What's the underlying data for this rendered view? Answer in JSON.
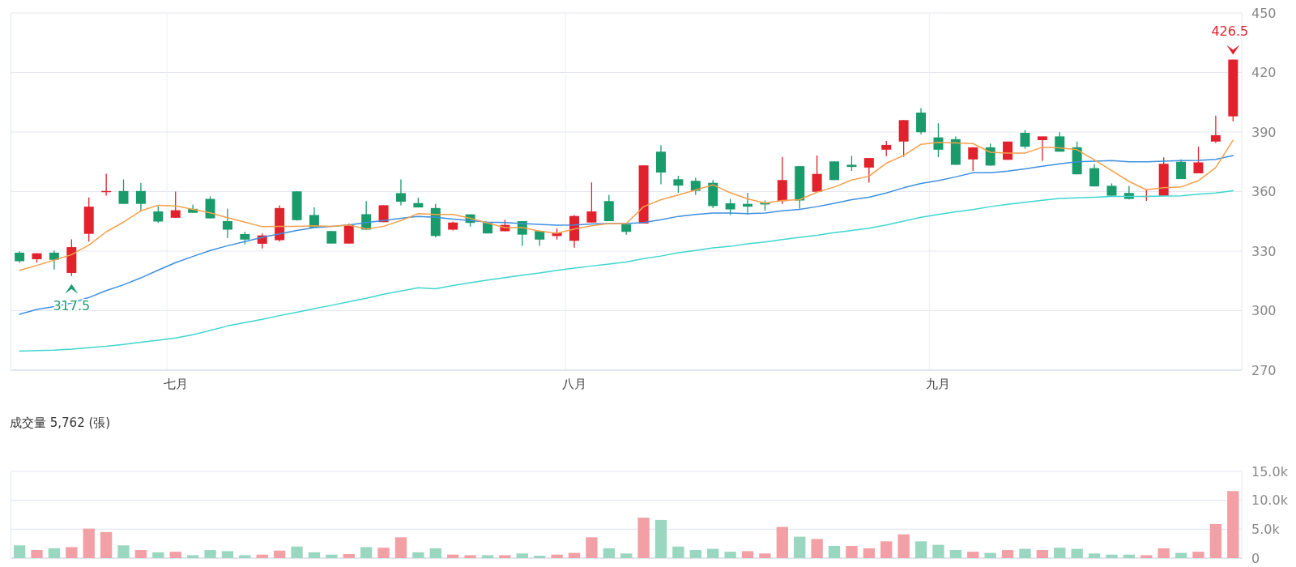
{
  "chart_data": [
    {
      "type": "candlestick",
      "categories": [
        null,
        null,
        null,
        null,
        null,
        null,
        null,
        null,
        null,
        "七月",
        null,
        null,
        null,
        null,
        null,
        null,
        null,
        null,
        null,
        null,
        null,
        null,
        null,
        null,
        null,
        null,
        null,
        null,
        null,
        null,
        null,
        null,
        "八月",
        null,
        null,
        null,
        null,
        null,
        null,
        null,
        null,
        null,
        null,
        null,
        null,
        null,
        null,
        null,
        null,
        null,
        null,
        null,
        null,
        "九月",
        null,
        null,
        null,
        null,
        null,
        null,
        null,
        null,
        null,
        null,
        null,
        null,
        null,
        null,
        null,
        null,
        null
      ],
      "ohlc": [
        [
          329.2,
          329.9,
          324.2,
          324.9
        ],
        [
          325.9,
          328.9,
          324.2,
          328.9
        ],
        [
          329.2,
          330.3,
          320.7,
          325.6
        ],
        [
          319.0,
          335.9,
          317.5,
          332.0
        ],
        [
          338.7,
          357.0,
          334.8,
          352.4
        ],
        [
          359.7,
          369.0,
          358.0,
          360.3
        ],
        [
          360.3,
          366.1,
          353.8,
          353.8
        ],
        [
          360.3,
          364.4,
          350.3,
          353.8
        ],
        [
          350.0,
          352.8,
          344.2,
          344.9
        ],
        [
          346.8,
          360.0,
          346.8,
          350.6
        ],
        [
          351.3,
          353.4,
          349.3,
          349.3
        ],
        [
          356.3,
          357.6,
          346.5,
          346.5
        ],
        [
          345.1,
          351.4,
          336.6,
          340.8
        ],
        [
          338.6,
          339.7,
          333.4,
          335.8
        ],
        [
          333.7,
          338.9,
          331.3,
          337.9
        ],
        [
          335.5,
          353.1,
          334.8,
          351.7
        ],
        [
          360.1,
          360.1,
          345.4,
          345.6
        ],
        [
          348.2,
          352.0,
          341.8,
          341.8
        ],
        [
          340.1,
          340.1,
          333.8,
          333.8
        ],
        [
          333.8,
          343.9,
          333.8,
          343.2
        ],
        [
          348.6,
          355.2,
          340.8,
          340.8
        ],
        [
          344.6,
          353.1,
          344.6,
          353.1
        ],
        [
          359.2,
          366.1,
          353.1,
          354.9
        ],
        [
          354.2,
          356.9,
          352.0,
          352.0
        ],
        [
          351.7,
          353.8,
          336.9,
          337.6
        ],
        [
          340.8,
          344.9,
          340.4,
          344.4
        ],
        [
          348.5,
          348.5,
          342.3,
          344.2
        ],
        [
          344.2,
          344.2,
          338.9,
          338.9
        ],
        [
          340.0,
          345.8,
          340.0,
          343.2
        ],
        [
          345.1,
          345.1,
          332.7,
          338.3
        ],
        [
          340.1,
          340.1,
          332.7,
          335.8
        ],
        [
          337.6,
          341.4,
          335.8,
          339.3
        ],
        [
          335.2,
          348.2,
          331.7,
          347.7
        ],
        [
          344.4,
          364.6,
          344.4,
          350.0
        ],
        [
          355.2,
          358.3,
          345.1,
          345.1
        ],
        [
          343.5,
          343.9,
          338.3,
          339.7
        ],
        [
          343.9,
          373.2,
          343.9,
          373.2
        ],
        [
          380.1,
          383.4,
          363.7,
          369.6
        ],
        [
          366.2,
          367.9,
          359.4,
          363.0
        ],
        [
          365.4,
          366.9,
          358.3,
          360.4
        ],
        [
          364.4,
          365.8,
          351.7,
          352.7
        ],
        [
          354.1,
          356.3,
          348.2,
          351.0
        ],
        [
          353.8,
          359.4,
          348.5,
          352.4
        ],
        [
          354.4,
          355.5,
          350.3,
          353.5
        ],
        [
          355.2,
          377.5,
          353.8,
          365.8
        ],
        [
          372.8,
          372.8,
          351.3,
          355.5
        ],
        [
          359.9,
          378.2,
          359.9,
          368.9
        ],
        [
          375.2,
          375.2,
          365.8,
          365.8
        ],
        [
          373.5,
          378.0,
          370.4,
          372.4
        ],
        [
          372.1,
          376.9,
          364.5,
          376.9
        ],
        [
          381.1,
          385.5,
          377.9,
          383.5
        ],
        [
          385.2,
          396.0,
          377.5,
          396.0
        ],
        [
          399.8,
          402.0,
          388.9,
          389.9
        ],
        [
          387.3,
          394.4,
          377.3,
          381.1
        ],
        [
          386.4,
          387.8,
          373.5,
          373.5
        ],
        [
          376.2,
          382.3,
          370.3,
          382.3
        ],
        [
          382.3,
          384.2,
          373.1,
          373.1
        ],
        [
          376.0,
          385.2,
          376.0,
          385.2
        ],
        [
          389.6,
          391.0,
          381.6,
          382.6
        ],
        [
          385.9,
          387.8,
          375.4,
          387.8
        ],
        [
          387.8,
          389.9,
          380.1,
          380.1
        ],
        [
          382.3,
          385.2,
          368.7,
          368.7
        ],
        [
          371.8,
          373.8,
          362.6,
          362.6
        ],
        [
          362.9,
          364.1,
          357.5,
          357.9
        ],
        [
          359.3,
          362.9,
          356.0,
          356.3
        ],
        [
          357.5,
          361.1,
          355.3,
          357.8
        ],
        [
          357.9,
          377.2,
          357.9,
          374.0
        ],
        [
          375.0,
          376.2,
          366.3,
          366.3
        ],
        [
          369.2,
          382.6,
          369.2,
          374.7
        ],
        [
          385.2,
          398.3,
          384.5,
          388.4
        ],
        [
          397.9,
          426.5,
          395.4,
          426.5
        ]
      ],
      "colors": [
        "#1a9b6c",
        "#e1212c",
        "#1a9b6c",
        "#e1212c",
        "#e1212c",
        "#e1212c",
        "#1a9b6c",
        "#1a9b6c",
        "#1a9b6c",
        "#e1212c",
        "#1a9b6c",
        "#1a9b6c",
        "#1a9b6c",
        "#1a9b6c",
        "#e1212c",
        "#e1212c",
        "#1a9b6c",
        "#1a9b6c",
        "#1a9b6c",
        "#e1212c",
        "#1a9b6c",
        "#e1212c",
        "#1a9b6c",
        "#1a9b6c",
        "#1a9b6c",
        "#e1212c",
        "#1a9b6c",
        "#1a9b6c",
        "#e1212c",
        "#1a9b6c",
        "#1a9b6c",
        "#e1212c",
        "#e1212c",
        "#e1212c",
        "#1a9b6c",
        "#1a9b6c",
        "#e1212c",
        "#1a9b6c",
        "#1a9b6c",
        "#1a9b6c",
        "#1a9b6c",
        "#1a9b6c",
        "#1a9b6c",
        "#1a9b6c",
        "#e1212c",
        "#1a9b6c",
        "#e1212c",
        "#1a9b6c",
        "#1a9b6c",
        "#e1212c",
        "#e1212c",
        "#e1212c",
        "#1a9b6c",
        "#1a9b6c",
        "#1a9b6c",
        "#e1212c",
        "#1a9b6c",
        "#e1212c",
        "#1a9b6c",
        "#e1212c",
        "#1a9b6c",
        "#1a9b6c",
        "#1a9b6c",
        "#1a9b6c",
        "#1a9b6c",
        "#e1212c",
        "#e1212c",
        "#1a9b6c",
        "#e1212c",
        "#e1212c",
        "#e1212c"
      ],
      "series": [
        {
          "type": "line",
          "color": "#f5a04a",
          "values": [
            320.3,
            322.8,
            325.4,
            328.2,
            333.0,
            339.7,
            344.6,
            350.3,
            353.1,
            352.8,
            351.0,
            349.3,
            346.8,
            344.6,
            342.3,
            342.5,
            342.5,
            342.8,
            342.5,
            343.2,
            341.1,
            342.5,
            345.4,
            348.9,
            348.5,
            348.5,
            346.5,
            344.2,
            341.8,
            341.8,
            340.1,
            339.0,
            341.1,
            342.8,
            343.9,
            343.9,
            352.4,
            355.9,
            358.3,
            360.8,
            363.4,
            359.4,
            356.3,
            354.2,
            355.5,
            355.9,
            359.7,
            362.3,
            365.8,
            367.7,
            374.3,
            378.2,
            383.8,
            384.8,
            384.5,
            384.2,
            379.8,
            379.4,
            379.4,
            382.3,
            382.0,
            381.1,
            376.0,
            370.6,
            365.1,
            360.9,
            361.9,
            362.3,
            365.5,
            372.1,
            385.9
          ]
        },
        {
          "type": "line",
          "color": "#3d8fe0",
          "values": [
            298.2,
            300.6,
            302.0,
            303.8,
            306.6,
            310.1,
            313.0,
            316.5,
            320.4,
            324.2,
            327.3,
            330.3,
            332.7,
            334.8,
            336.9,
            338.7,
            340.4,
            341.8,
            342.5,
            343.2,
            344.4,
            345.4,
            346.5,
            347.5,
            347.0,
            346.1,
            345.4,
            344.6,
            344.4,
            343.9,
            343.5,
            343.1,
            343.2,
            343.7,
            343.9,
            343.9,
            344.4,
            345.8,
            347.5,
            348.5,
            349.2,
            349.2,
            348.9,
            349.2,
            350.3,
            351.0,
            352.4,
            354.1,
            355.9,
            357.1,
            359.3,
            361.9,
            364.1,
            365.5,
            367.4,
            369.5,
            369.5,
            370.3,
            371.4,
            372.8,
            374.0,
            375.0,
            375.3,
            375.6,
            375.0,
            375.0,
            375.3,
            375.6,
            375.7,
            376.2,
            378.2
          ]
        },
        {
          "type": "line",
          "color": "#3dd6d0",
          "values": [
            279.6,
            279.9,
            280.1,
            280.6,
            281.3,
            282.0,
            283.0,
            284.1,
            285.1,
            286.2,
            287.9,
            290.0,
            292.3,
            294.0,
            295.6,
            297.5,
            299.2,
            301.0,
            302.7,
            304.5,
            306.2,
            308.3,
            309.9,
            311.5,
            311.0,
            312.7,
            314.1,
            315.4,
            316.6,
            317.9,
            319.0,
            320.3,
            321.4,
            322.5,
            323.5,
            324.5,
            326.2,
            327.5,
            329.2,
            330.3,
            331.6,
            332.4,
            333.7,
            334.6,
            335.8,
            336.9,
            338.0,
            339.3,
            340.4,
            341.5,
            343.2,
            345.1,
            347.0,
            348.5,
            349.8,
            350.9,
            352.4,
            353.6,
            354.6,
            355.6,
            356.5,
            356.8,
            357.1,
            357.5,
            357.5,
            357.6,
            357.8,
            357.9,
            358.7,
            359.3,
            360.4
          ]
        }
      ],
      "ylim": [
        270,
        450
      ],
      "yticks": [
        270,
        300,
        330,
        360,
        390,
        420,
        450
      ],
      "grid": true,
      "annotations": [
        {
          "text": "426.5",
          "y": 426.5
        },
        {
          "text": "317.5",
          "y": 317.5
        }
      ]
    },
    {
      "type": "bar",
      "title": "成交量  5,762 (張)",
      "categories": [
        null,
        null,
        null,
        null,
        null,
        null,
        null,
        null,
        null,
        null,
        null,
        null,
        null,
        null,
        null,
        null,
        null,
        null,
        null,
        null,
        null,
        null,
        null,
        null,
        null,
        null,
        null,
        null,
        null,
        null,
        null,
        null,
        null,
        null,
        null,
        null,
        null,
        null,
        null,
        null,
        null,
        null,
        null,
        null,
        null,
        null,
        null,
        null,
        null,
        null,
        null,
        null,
        null,
        null,
        null,
        null,
        null,
        null,
        null,
        null,
        null,
        null,
        null,
        null,
        null,
        null,
        null,
        null,
        null,
        null,
        null
      ],
      "values": [
        2200,
        1400,
        1700,
        1900,
        5100,
        4500,
        2200,
        1400,
        1000,
        1100,
        500,
        1400,
        1200,
        500,
        600,
        1300,
        2000,
        1000,
        600,
        700,
        1900,
        1800,
        3600,
        1000,
        1700,
        600,
        500,
        500,
        500,
        800,
        400,
        600,
        900,
        3600,
        1700,
        800,
        7000,
        6600,
        2000,
        1400,
        1600,
        1100,
        1200,
        800,
        5400,
        3700,
        3300,
        2100,
        2100,
        1700,
        2900,
        4100,
        2900,
        2300,
        1400,
        1100,
        900,
        1400,
        1600,
        1400,
        1800,
        1600,
        800,
        600,
        600,
        500,
        1700,
        900,
        1100,
        5900,
        11600
      ],
      "colors": [
        "#99d7c0",
        "#f2a0a5",
        "#99d7c0",
        "#f2a0a5",
        "#f2a0a5",
        "#f2a0a5",
        "#99d7c0",
        "#f2a0a5",
        "#99d7c0",
        "#f2a0a5",
        "#99d7c0",
        "#99d7c0",
        "#99d7c0",
        "#99d7c0",
        "#f2a0a5",
        "#f2a0a5",
        "#99d7c0",
        "#99d7c0",
        "#99d7c0",
        "#f2a0a5",
        "#99d7c0",
        "#f2a0a5",
        "#f2a0a5",
        "#99d7c0",
        "#99d7c0",
        "#f2a0a5",
        "#f2a0a5",
        "#99d7c0",
        "#f2a0a5",
        "#99d7c0",
        "#99d7c0",
        "#f2a0a5",
        "#f2a0a5",
        "#f2a0a5",
        "#99d7c0",
        "#99d7c0",
        "#f2a0a5",
        "#99d7c0",
        "#99d7c0",
        "#99d7c0",
        "#99d7c0",
        "#99d7c0",
        "#f2a0a5",
        "#f2a0a5",
        "#f2a0a5",
        "#99d7c0",
        "#f2a0a5",
        "#99d7c0",
        "#f2a0a5",
        "#f2a0a5",
        "#f2a0a5",
        "#f2a0a5",
        "#99d7c0",
        "#99d7c0",
        "#99d7c0",
        "#f2a0a5",
        "#99d7c0",
        "#f2a0a5",
        "#99d7c0",
        "#f2a0a5",
        "#99d7c0",
        "#99d7c0",
        "#99d7c0",
        "#99d7c0",
        "#99d7c0",
        "#f2a0a5",
        "#f2a0a5",
        "#99d7c0",
        "#f2a0a5",
        "#f2a0a5",
        "#f2a0a5"
      ],
      "ylim": [
        0,
        15000
      ],
      "yticks": [
        0,
        {
          "value": 5000,
          "label": "5.0k"
        },
        {
          "value": 10000,
          "label": "10.0k"
        },
        {
          "value": 15000,
          "label": "15.0k"
        }
      ],
      "grid": "y"
    }
  ]
}
